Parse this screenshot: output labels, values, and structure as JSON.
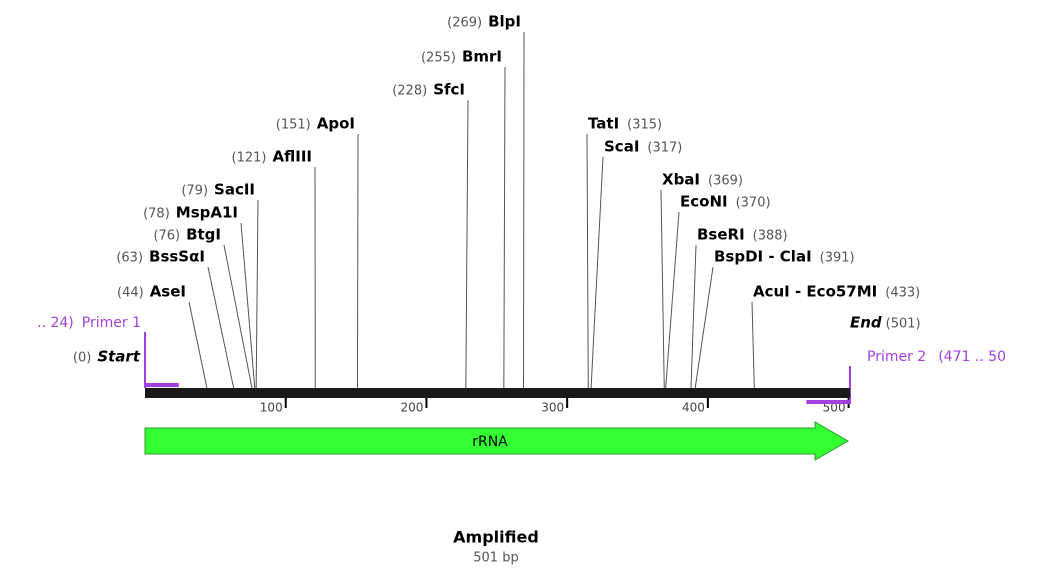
{
  "enzymes": [
    {
      "name": "AseI",
      "position": 44,
      "position_label": "(44)"
    },
    {
      "name": "BssSαI",
      "position": 63,
      "position_label": "(63)"
    },
    {
      "name": "BtgI",
      "position": 76,
      "position_label": "(76)"
    },
    {
      "name": "MspA1I",
      "position": 78,
      "position_label": "(78)"
    },
    {
      "name": "SacII",
      "position": 79,
      "position_label": "(79)"
    },
    {
      "name": "AflIII",
      "position": 121,
      "position_label": "(121)"
    },
    {
      "name": "ApoI",
      "position": 151,
      "position_label": "(151)"
    },
    {
      "name": "SfcI",
      "position": 228,
      "position_label": "(228)"
    },
    {
      "name": "BmrI",
      "position": 255,
      "position_label": "(255)"
    },
    {
      "name": "BlpI",
      "position": 269,
      "position_label": "(269)"
    },
    {
      "name": "TatI",
      "position": 315,
      "position_label": "(315)"
    },
    {
      "name": "ScaI",
      "position": 317,
      "position_label": "(317)"
    },
    {
      "name": "XbaI",
      "position": 369,
      "position_label": "(369)"
    },
    {
      "name": "EcoNI",
      "position": 370,
      "position_label": "(370)"
    },
    {
      "name": "BseRI",
      "position": 388,
      "position_label": "(388)"
    },
    {
      "name": "BspDI - ClaI",
      "position": 391,
      "position_label": "(391)"
    },
    {
      "name": "AcuI - Eco57MI",
      "position": 433,
      "position_label": "(433)"
    }
  ],
  "start": {
    "name": "Start",
    "position": 0,
    "position_label": "(0)"
  },
  "end": {
    "name": "End",
    "position": 501,
    "position_label": "(501)"
  },
  "primers": [
    {
      "name": "Primer 1",
      "range_label": ".. 24)",
      "start": 1,
      "end": 24
    },
    {
      "name": "Primer 2",
      "range_label": "(471 .. 50",
      "start": 471,
      "end": 501
    }
  ],
  "ruler_ticks": [
    100,
    200,
    300,
    400,
    500
  ],
  "feature": {
    "name": "rRNA"
  },
  "footer": {
    "title": "Amplified",
    "length": "501 bp"
  }
}
